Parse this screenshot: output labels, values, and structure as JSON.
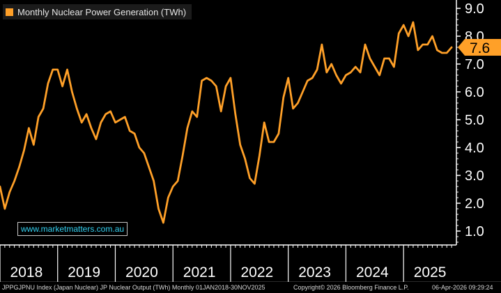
{
  "legend": {
    "label": "Monthly Nuclear Power Generation (TWh)"
  },
  "watermark": {
    "text": "www.marketmatters.com.au"
  },
  "footer": {
    "left": "JPPGJPNU Index (Japan Nuclear) JP Nuclear Output (TWh) Monthly 01JAN2018-30NOV2025",
    "center": "Copyright© 2026 Bloomberg Finance L.P.",
    "right": "06-Apr-2026 09:29:24"
  },
  "colors": {
    "line": "#ffa028",
    "background": "#000000",
    "text": "#ffffff",
    "axis": "#ffffff"
  },
  "chart_data": {
    "type": "line",
    "ylim": [
      0.5,
      9.3
    ],
    "yticks": [
      "9.0",
      "8.0",
      "7.0",
      "6.0",
      "5.0",
      "4.0",
      "3.0",
      "2.0",
      "1.0"
    ],
    "ytick_values": [
      9,
      8,
      7,
      6,
      5,
      4,
      3,
      2,
      1
    ],
    "x_axis_labels": [
      "2018",
      "2019",
      "2020",
      "2021",
      "2022",
      "2023",
      "2024",
      "2025"
    ],
    "last_value_label": "7.6",
    "start": "2018-01",
    "series": [
      {
        "values": [
          2.6,
          1.8,
          2.4,
          2.8,
          3.3,
          3.9,
          4.7,
          4.1,
          5.1,
          5.4,
          6.3,
          6.8,
          6.8,
          6.2,
          6.8,
          6.0,
          5.4,
          4.9,
          5.2,
          4.7,
          4.3,
          4.9,
          5.2,
          5.3,
          4.9,
          5.0,
          5.1,
          4.6,
          4.5,
          4.0,
          3.8,
          3.3,
          2.8,
          1.8,
          1.3,
          2.2,
          2.6,
          2.8,
          3.7,
          4.7,
          5.3,
          5.1,
          6.4,
          6.5,
          6.4,
          6.2,
          5.3,
          6.2,
          6.5,
          5.2,
          4.1,
          3.6,
          2.9,
          2.7,
          3.7,
          4.9,
          4.2,
          4.2,
          4.5,
          5.8,
          6.5,
          5.4,
          5.6,
          6.0,
          6.4,
          6.5,
          6.8,
          7.7,
          6.7,
          7.0,
          6.6,
          6.3,
          6.6,
          6.7,
          6.9,
          6.7,
          7.7,
          7.2,
          6.9,
          6.6,
          7.2,
          7.2,
          6.9,
          8.1,
          8.4,
          8.0,
          8.5,
          7.5,
          7.7,
          7.7,
          8.0,
          7.5,
          7.4,
          7.4,
          7.6
        ]
      }
    ]
  }
}
